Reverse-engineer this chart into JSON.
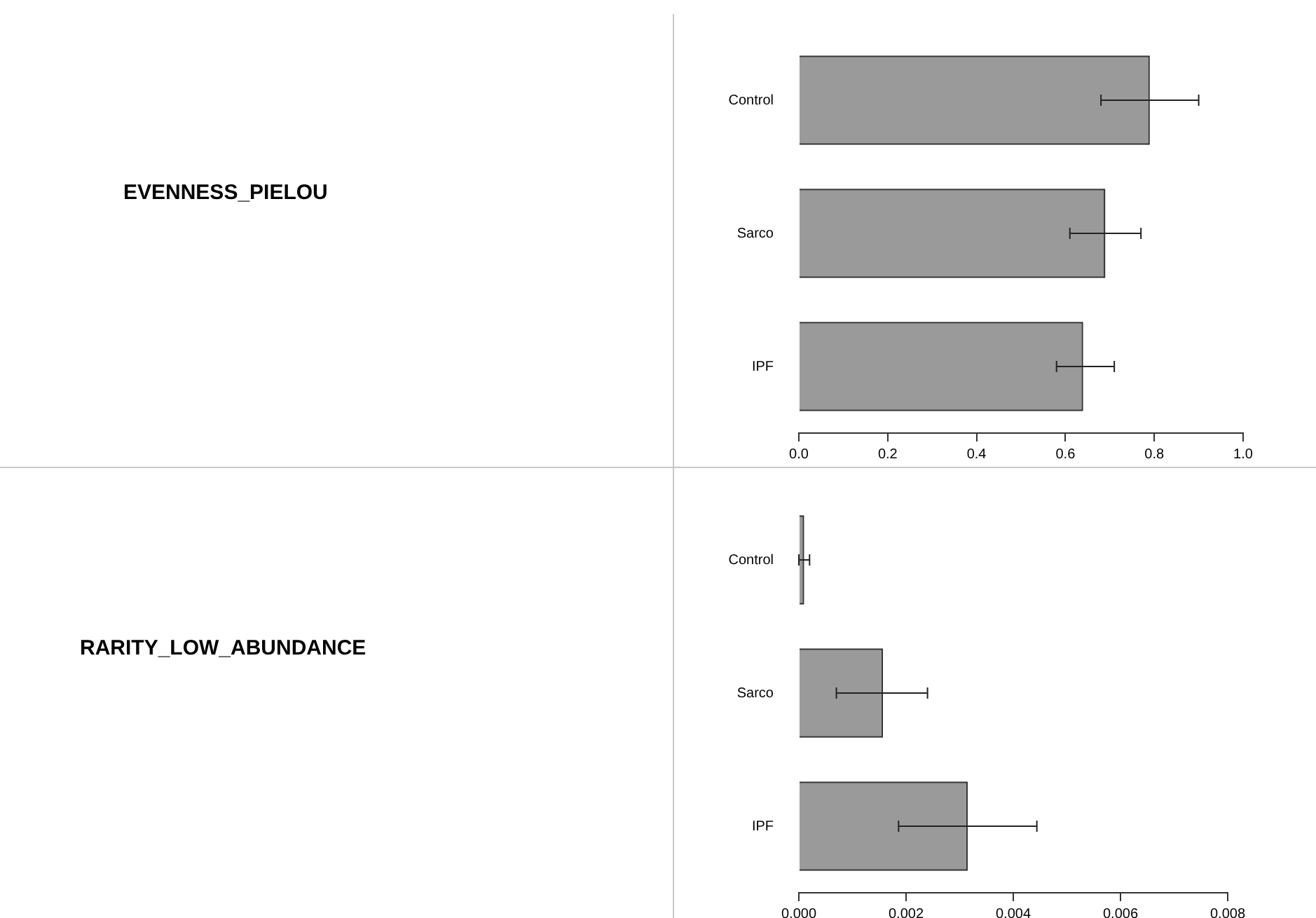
{
  "chart_data": [
    {
      "type": "bar",
      "orientation": "horizontal",
      "ylabel": "EVENNESS_PIELOU",
      "categories": [
        "Control",
        "Sarco",
        "IPF"
      ],
      "values": [
        0.79,
        0.69,
        0.64
      ],
      "color": "#9a9a9a",
      "errors": [
        [
          0.68,
          0.9
        ],
        [
          0.61,
          0.77
        ],
        [
          0.58,
          0.71
        ]
      ],
      "xlim": [
        0,
        1
      ],
      "xticks": [
        {
          "value": 0,
          "label": "0.0"
        },
        0.2,
        0.4,
        0.6,
        0.8,
        {
          "value": 1,
          "label": "1.0"
        }
      ],
      "grid": false,
      "legend": false
    },
    {
      "type": "bar",
      "orientation": "horizontal",
      "ylabel": "RARITY_LOW_ABUNDANCE",
      "categories": [
        "Control",
        "Sarco",
        "IPF"
      ],
      "values": [
        0.0001,
        0.00157,
        0.00315
      ],
      "color": "#9a9a9a",
      "errors": [
        [
          0,
          0.0002
        ],
        [
          0.0007,
          0.0024
        ],
        [
          0.00186,
          0.00444
        ]
      ],
      "xlim": [
        0,
        0.008
      ],
      "xticks": [
        {
          "value": 0,
          "label": "0.000"
        },
        {
          "value": 0.002,
          "label": "0.002"
        },
        {
          "value": 0.004,
          "label": "0.004"
        },
        {
          "value": 0.006,
          "label": "0.006"
        },
        {
          "value": 0.008,
          "label": "0.008"
        }
      ],
      "grid": false,
      "legend": false
    }
  ]
}
